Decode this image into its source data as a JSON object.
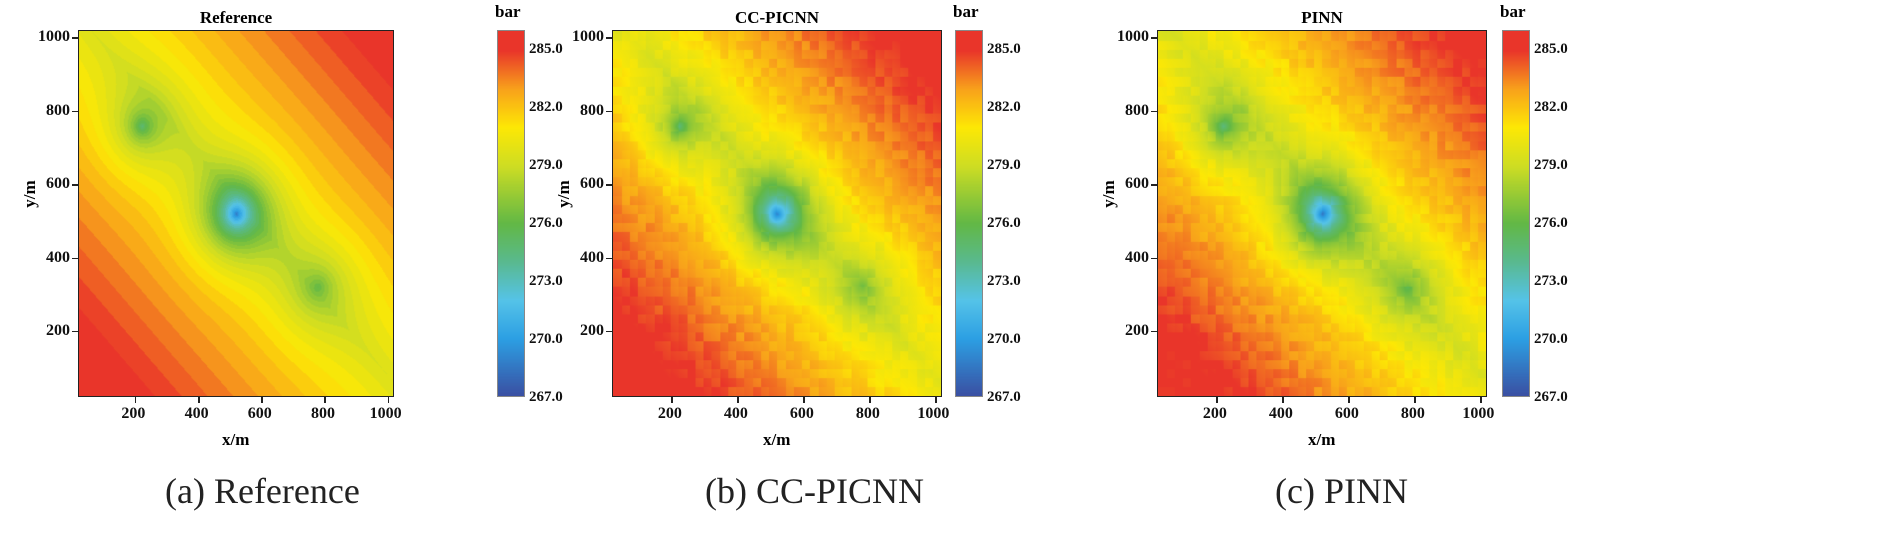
{
  "chart_data": [
    {
      "type": "heatmap",
      "title": "Reference",
      "xlabel": "x/m",
      "ylabel": "y/m",
      "colorbar_label": "bar",
      "caption": "(a) Reference",
      "style": "contour",
      "xlim": [
        20,
        1020
      ],
      "ylim": [
        20,
        1020
      ]
    },
    {
      "type": "heatmap",
      "title": "CC-PICNN",
      "xlabel": "x/m",
      "ylabel": "y/m",
      "colorbar_label": "bar",
      "caption": "(b) CC-PICNN",
      "style": "noisy",
      "xlim": [
        20,
        1020
      ],
      "ylim": [
        20,
        1020
      ]
    },
    {
      "type": "heatmap",
      "title": "PINN",
      "xlabel": "x/m",
      "ylabel": "y/m",
      "colorbar_label": "bar",
      "caption": "(c) PINN",
      "style": "noisy",
      "xlim": [
        20,
        1020
      ],
      "ylim": [
        20,
        1020
      ]
    }
  ],
  "x_ticks": [
    "200",
    "400",
    "600",
    "800",
    "1000"
  ],
  "y_ticks": [
    "200",
    "400",
    "600",
    "800",
    "1000"
  ],
  "colorbar_ticks": [
    "267.0",
    "270.0",
    "273.0",
    "276.0",
    "279.0",
    "282.0",
    "285.0"
  ],
  "colorbar_range": [
    267,
    286
  ],
  "wells": [
    {
      "x": 220,
      "y": 760,
      "value": 274
    },
    {
      "x": 520,
      "y": 520,
      "value": 267
    },
    {
      "x": 780,
      "y": 320,
      "value": 276
    }
  ],
  "colormap": {
    "267": "#3a4fa2",
    "270": "#2c9fe3",
    "272": "#55c3e8",
    "274": "#59b98f",
    "276": "#62b846",
    "279": "#cedd23",
    "281": "#fde805",
    "283": "#f8a11b",
    "285": "#e9352a"
  }
}
